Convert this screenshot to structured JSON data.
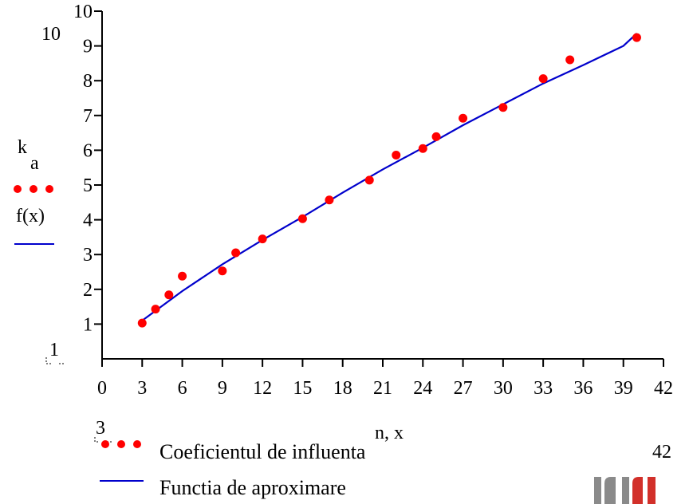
{
  "chart_data": {
    "type": "scatter",
    "xlabel": "n, x",
    "ylabel_parts": {
      "var": "k",
      "sub": "a",
      "func": "f(x)"
    },
    "xlim": [
      0,
      42
    ],
    "ylim": [
      0,
      10
    ],
    "x_ticks": [
      0,
      3,
      6,
      9,
      12,
      15,
      18,
      21,
      24,
      27,
      30,
      33,
      36,
      39,
      42
    ],
    "y_ticks": [
      1,
      2,
      3,
      4,
      5,
      6,
      7,
      8,
      9,
      10
    ],
    "range_labels": {
      "y_top": "10",
      "y_bottom": "1",
      "x_left": "3",
      "x_right": "42"
    },
    "legend": [
      {
        "label": "Coeficientul de influenta",
        "marker": "dots",
        "color": "#ff0000"
      },
      {
        "label": "Functia de aproximare",
        "marker": "line",
        "color": "#0000cc"
      }
    ],
    "series": [
      {
        "name": "Coeficientul de influenta",
        "kind": "points",
        "color": "#ff0000",
        "points": [
          [
            3,
            1.03
          ],
          [
            4,
            1.43
          ],
          [
            5,
            1.84
          ],
          [
            6,
            2.38
          ],
          [
            9,
            2.53
          ],
          [
            10,
            3.05
          ],
          [
            12,
            3.45
          ],
          [
            15,
            4.03
          ],
          [
            17,
            4.57
          ],
          [
            20,
            5.14
          ],
          [
            22,
            5.86
          ],
          [
            24,
            6.05
          ],
          [
            25,
            6.39
          ],
          [
            27,
            6.92
          ],
          [
            30,
            7.23
          ],
          [
            33,
            8.06
          ],
          [
            35,
            8.6
          ],
          [
            40,
            9.24
          ]
        ]
      },
      {
        "name": "Functia de aproximare",
        "kind": "line",
        "color": "#0000cc",
        "points": [
          [
            3,
            1.1
          ],
          [
            6,
            1.95
          ],
          [
            9,
            2.72
          ],
          [
            12,
            3.42
          ],
          [
            15,
            4.08
          ],
          [
            18,
            4.78
          ],
          [
            21,
            5.45
          ],
          [
            24,
            6.07
          ],
          [
            27,
            6.72
          ],
          [
            30,
            7.32
          ],
          [
            33,
            7.92
          ],
          [
            36,
            8.45
          ],
          [
            39,
            9.0
          ],
          [
            40,
            9.36
          ]
        ]
      }
    ]
  },
  "logo": {
    "name": "university-logo",
    "colors": [
      "#8a8a8a",
      "#d2302a"
    ]
  }
}
